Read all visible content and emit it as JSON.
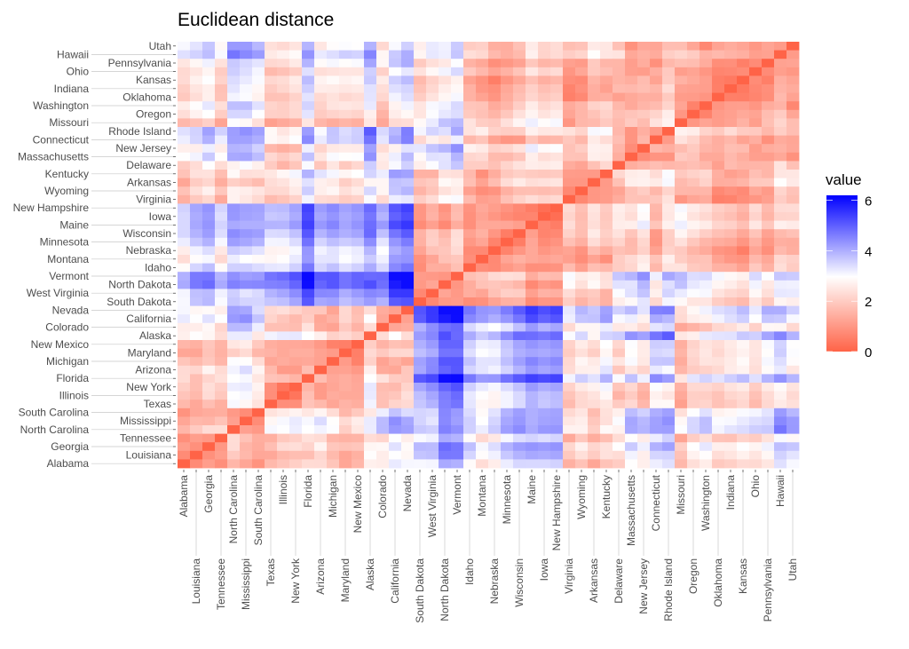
{
  "chart_data": {
    "type": "heatmap",
    "title": "Euclidean distance",
    "legend": {
      "title": "value",
      "ticks": [
        0,
        2,
        4,
        6
      ],
      "position": "right"
    },
    "color_scale": {
      "low": "#FF6347",
      "mid": "#FFFFFF",
      "high": "#0000FF",
      "midpoint": 3,
      "range": [
        0,
        6.2
      ]
    },
    "grid": false,
    "y_labels_top_to_bottom": [
      "Utah",
      "Hawaii",
      "Pennsylvania",
      "Ohio",
      "Kansas",
      "Indiana",
      "Oklahoma",
      "Washington",
      "Oregon",
      "Missouri",
      "Rhode Island",
      "Connecticut",
      "New Jersey",
      "Massachusetts",
      "Delaware",
      "Kentucky",
      "Arkansas",
      "Wyoming",
      "Virginia",
      "New Hampshire",
      "Iowa",
      "Maine",
      "Wisconsin",
      "Minnesota",
      "Nebraska",
      "Montana",
      "Idaho",
      "Vermont",
      "North Dakota",
      "West Virginia",
      "South Dakota",
      "Nevada",
      "California",
      "Colorado",
      "Alaska",
      "New Mexico",
      "Maryland",
      "Michigan",
      "Arizona",
      "Florida",
      "New York",
      "Illinois",
      "Texas",
      "South Carolina",
      "Mississippi",
      "North Carolina",
      "Tennessee",
      "Georgia",
      "Louisiana",
      "Alabama"
    ],
    "x_labels_left_to_right": [
      "Alabama",
      "Louisiana",
      "Georgia",
      "Tennessee",
      "North Carolina",
      "Mississippi",
      "South Carolina",
      "Texas",
      "Illinois",
      "New York",
      "Florida",
      "Arizona",
      "Michigan",
      "Maryland",
      "New Mexico",
      "Alaska",
      "Colorado",
      "California",
      "Nevada",
      "South Dakota",
      "West Virginia",
      "North Dakota",
      "Vermont",
      "Idaho",
      "Montana",
      "Nebraska",
      "Minnesota",
      "Wisconsin",
      "Maine",
      "Iowa",
      "New Hampshire",
      "Virginia",
      "Wyoming",
      "Arkansas",
      "Kentucky",
      "Delaware",
      "Massachusetts",
      "New Jersey",
      "Connecticut",
      "Rhode Island",
      "Missouri",
      "Oregon",
      "Washington",
      "Oklahoma",
      "Indiana",
      "Kansas",
      "Ohio",
      "Pennsylvania",
      "Hawaii",
      "Utah"
    ]
  }
}
